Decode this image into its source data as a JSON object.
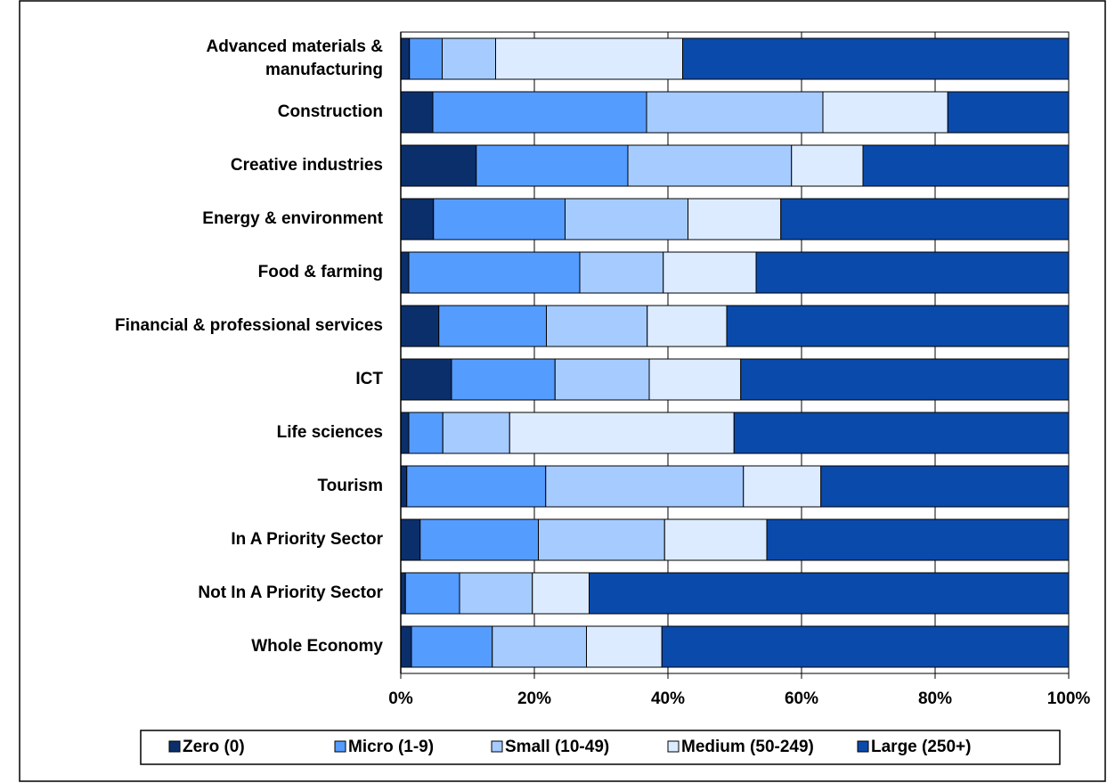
{
  "chart_data": {
    "type": "stacked_bar_horizontal",
    "categories": [
      "Advanced materials & manufacturing",
      "Construction",
      "Creative industries",
      "Energy & environment",
      "Food & farming",
      "Financial & professional services",
      "ICT",
      "Life sciences",
      "Tourism",
      "In A Priority Sector",
      "Not In A Priority Sector",
      "Whole Economy"
    ],
    "series": [
      {
        "name": "Zero (0)",
        "color": "#0b2f6b",
        "values": [
          1.3,
          4.8,
          11.3,
          4.9,
          1.2,
          5.7,
          7.6,
          1.2,
          0.9,
          2.9,
          0.7,
          1.6
        ]
      },
      {
        "name": "Micro (1-9)",
        "color": "#559cff",
        "values": [
          4.9,
          32.0,
          22.7,
          19.7,
          25.6,
          16.1,
          15.5,
          5.1,
          20.8,
          17.7,
          8.1,
          12.1
        ]
      },
      {
        "name": "Small (10-49)",
        "color": "#a6cbff",
        "values": [
          8.0,
          26.4,
          24.5,
          18.4,
          12.5,
          15.1,
          14.1,
          10.0,
          29.6,
          18.9,
          10.9,
          14.1
        ]
      },
      {
        "name": "Medium (50-249)",
        "color": "#dcebff",
        "values": [
          28.0,
          18.7,
          10.7,
          13.9,
          13.9,
          11.9,
          13.7,
          33.6,
          11.6,
          15.3,
          8.5,
          11.3
        ]
      },
      {
        "name": "Large (250+)",
        "color": "#0a4aab",
        "values": [
          57.8,
          18.1,
          30.8,
          43.1,
          46.8,
          51.2,
          49.1,
          50.1,
          37.1,
          45.2,
          71.8,
          60.9
        ]
      }
    ],
    "xlim": [
      0,
      100
    ],
    "xticks": [
      {
        "value": 0,
        "label": "0%"
      },
      {
        "value": 20,
        "label": "20%"
      },
      {
        "value": 40,
        "label": "40%"
      },
      {
        "value": 60,
        "label": "60%"
      },
      {
        "value": 80,
        "label": "80%"
      },
      {
        "value": 100,
        "label": "100%"
      }
    ],
    "grid": true,
    "legend": "bottom"
  }
}
